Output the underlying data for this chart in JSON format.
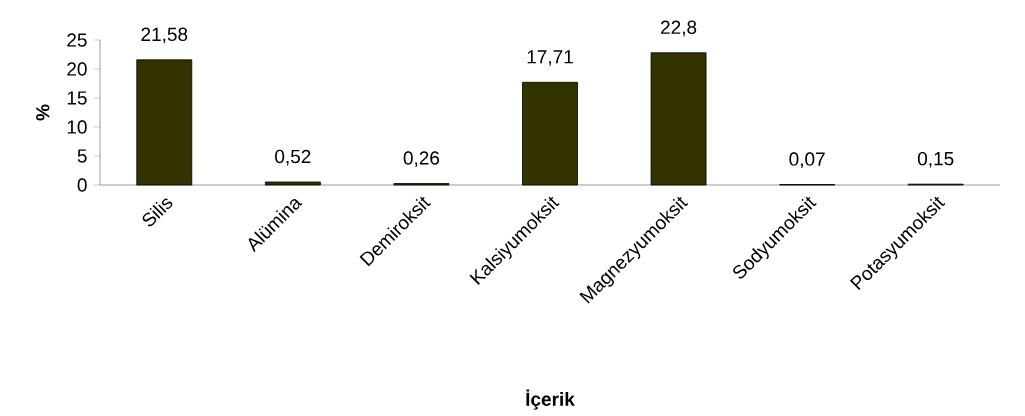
{
  "chart_data": {
    "type": "bar",
    "categories": [
      "Silis",
      "Alümina",
      "Demiroksit",
      "Kalsiyumoksit",
      "Magnezyumoksit",
      "Sodyumoksit",
      "Potasyumoksit"
    ],
    "values": [
      21.58,
      0.52,
      0.26,
      17.71,
      22.8,
      0.07,
      0.15
    ],
    "value_labels": [
      "21,58",
      "0,52",
      "0,26",
      "17,71",
      "22,8",
      "0,07",
      "0,15"
    ],
    "color": "#333300",
    "xlabel": "İçerik",
    "ylabel": "%",
    "ylim": [
      0,
      25
    ],
    "yticks": [
      0,
      5,
      10,
      15,
      20,
      25
    ],
    "grid": false
  }
}
